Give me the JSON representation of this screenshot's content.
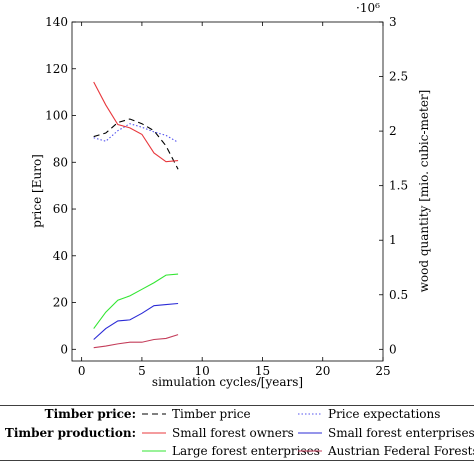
{
  "chart_data": {
    "type": "line",
    "xlabel": "simulation cycles/[years]",
    "xlim": [
      -0.8,
      25
    ],
    "x_ticks": [
      0,
      5,
      10,
      15,
      20,
      25
    ],
    "left_axis": {
      "label": "price [Euro]",
      "ylim": [
        -5,
        140
      ],
      "ticks": [
        0,
        20,
        40,
        60,
        80,
        100,
        120,
        140
      ]
    },
    "right_axis": {
      "label": "wood quantity [mio. cubic-meter]",
      "multiplier": "·10⁶",
      "ylim": [
        -0.107,
        3
      ],
      "ticks": [
        0,
        0.5,
        1,
        1.5,
        2,
        2.5,
        3
      ],
      "tick_labels": [
        "0",
        "0.5",
        "1",
        "1.5",
        "2",
        "2.5",
        "3"
      ]
    },
    "series": [
      {
        "name": "Timber price",
        "axis": "left",
        "color": "#000000",
        "dash": "6,4",
        "x": [
          1,
          2,
          3,
          4,
          5,
          6,
          7,
          8
        ],
        "y": [
          91,
          92.5,
          97,
          98.5,
          96.5,
          93.5,
          87,
          77
        ]
      },
      {
        "name": "Price expectations",
        "axis": "left",
        "color": "#5555ee",
        "dash": "1.5,2",
        "x": [
          1,
          2,
          3,
          4,
          5,
          6,
          7,
          8
        ],
        "y": [
          90.5,
          89,
          93.5,
          96.5,
          95,
          93,
          91.5,
          88.5
        ]
      },
      {
        "name": "Small forest owners",
        "axis": "right",
        "color": "#e8383d",
        "dash": "",
        "x": [
          1,
          2,
          3,
          4,
          5,
          6,
          7,
          8
        ],
        "y": [
          2.45,
          2.24,
          2.06,
          2.03,
          1.97,
          1.8,
          1.72,
          1.73
        ]
      },
      {
        "name": "Small forest enterprises",
        "axis": "right",
        "color": "#2b2bd6",
        "dash": "",
        "x": [
          1,
          2,
          3,
          4,
          5,
          6,
          7,
          8
        ],
        "y": [
          0.09,
          0.19,
          0.26,
          0.27,
          0.33,
          0.4,
          0.41,
          0.42
        ]
      },
      {
        "name": "Large forest enterprises",
        "axis": "right",
        "color": "#33e633",
        "dash": "",
        "x": [
          1,
          2,
          3,
          4,
          5,
          6,
          7,
          8
        ],
        "y": [
          0.19,
          0.34,
          0.45,
          0.49,
          0.55,
          0.61,
          0.68,
          0.69
        ]
      },
      {
        "name": "Austrian Federal Forests",
        "axis": "right",
        "color": "#c43d5a",
        "dash": "",
        "x": [
          1,
          2,
          3,
          4,
          5,
          6,
          7,
          8
        ],
        "y": [
          0.015,
          0.03,
          0.05,
          0.065,
          0.065,
          0.09,
          0.1,
          0.135
        ]
      }
    ],
    "legend": {
      "placement": "bottom",
      "rows": [
        {
          "heading": "Timber price:",
          "entries": [
            0,
            1
          ]
        },
        {
          "heading": "Timber production:",
          "entries": [
            2,
            3
          ]
        },
        {
          "heading": "",
          "entries": [
            4,
            5
          ]
        }
      ]
    }
  }
}
